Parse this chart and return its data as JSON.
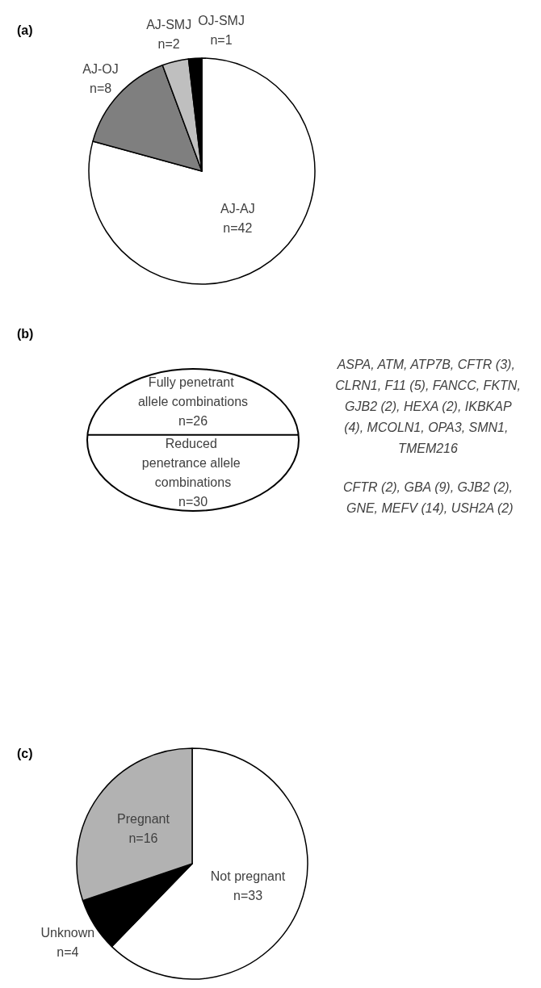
{
  "chart_data": [
    {
      "type": "pie",
      "title": "(a)",
      "categories": [
        "AJ-AJ",
        "AJ-OJ",
        "AJ-SMJ",
        "OJ-SMJ"
      ],
      "values": [
        42,
        8,
        2,
        1
      ],
      "value_labels": [
        "n=42",
        "n=8",
        "n=2",
        "n=1"
      ],
      "colors": [
        "#ffffff",
        "#7f7f7f",
        "#bfbfbf",
        "#000000"
      ]
    },
    {
      "type": "other",
      "title": "(b)",
      "categories": [
        "Fully penetrant allele combinations",
        "Reduced penetrance allele combinations"
      ],
      "values": [
        26,
        30
      ],
      "value_labels": [
        "n=26",
        "n=30"
      ],
      "annotations": [
        "ASPA, ATM, ATP7B, CFTR (3), CLRN1, F11 (5), FANCC, FKTN, GJB2 (2), HEXA (2), IKBKAP (4), MCOLN1, OPA3, SMN1, TMEM216",
        "CFTR (2), GBA (9), GJB2 (2), GNE, MEFV (14), USH2A (2)"
      ]
    },
    {
      "type": "pie",
      "title": "(c)",
      "categories": [
        "Not pregnant",
        "Unknown",
        "Pregnant"
      ],
      "values": [
        33,
        4,
        16
      ],
      "value_labels": [
        "n=33",
        "n=4",
        "n=16"
      ],
      "colors": [
        "#ffffff",
        "#000000",
        "#b2b2b2"
      ]
    }
  ]
}
